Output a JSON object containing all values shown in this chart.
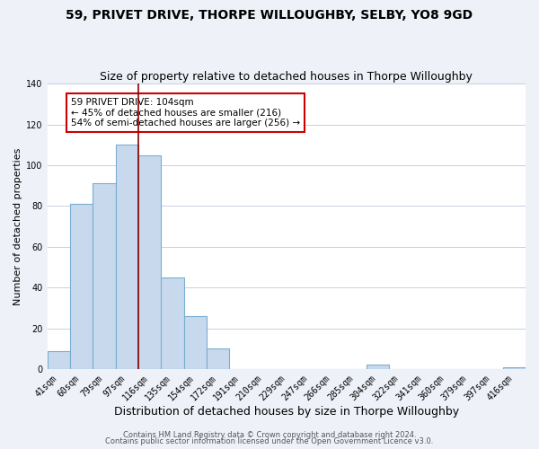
{
  "title": "59, PRIVET DRIVE, THORPE WILLOUGHBY, SELBY, YO8 9GD",
  "subtitle": "Size of property relative to detached houses in Thorpe Willoughby",
  "xlabel": "Distribution of detached houses by size in Thorpe Willoughby",
  "ylabel": "Number of detached properties",
  "bin_labels": [
    "41sqm",
    "60sqm",
    "79sqm",
    "97sqm",
    "116sqm",
    "135sqm",
    "154sqm",
    "172sqm",
    "191sqm",
    "210sqm",
    "229sqm",
    "247sqm",
    "266sqm",
    "285sqm",
    "304sqm",
    "322sqm",
    "341sqm",
    "360sqm",
    "379sqm",
    "397sqm",
    "416sqm"
  ],
  "bar_heights": [
    9,
    81,
    91,
    110,
    105,
    45,
    26,
    10,
    0,
    0,
    0,
    0,
    0,
    0,
    2,
    0,
    0,
    0,
    0,
    0,
    1
  ],
  "bar_color": "#c8d9ed",
  "bar_edge_color": "#7aaed0",
  "highlight_line_color": "#8b0000",
  "annotation_text": "59 PRIVET DRIVE: 104sqm\n← 45% of detached houses are smaller (216)\n54% of semi-detached houses are larger (256) →",
  "annotation_box_color": "#ffffff",
  "annotation_box_edge": "#cc0000",
  "ylim": [
    0,
    140
  ],
  "yticks": [
    0,
    20,
    40,
    60,
    80,
    100,
    120,
    140
  ],
  "footer_line1": "Contains HM Land Registry data © Crown copyright and database right 2024.",
  "footer_line2": "Contains public sector information licensed under the Open Government Licence v3.0.",
  "bg_color": "#eef2f8",
  "plot_bg_color": "#ffffff",
  "grid_color": "#c8d0de",
  "title_fontsize": 10,
  "subtitle_fontsize": 9,
  "xlabel_fontsize": 9,
  "ylabel_fontsize": 8,
  "tick_fontsize": 7,
  "footer_fontsize": 6,
  "ann_fontsize": 7.5
}
